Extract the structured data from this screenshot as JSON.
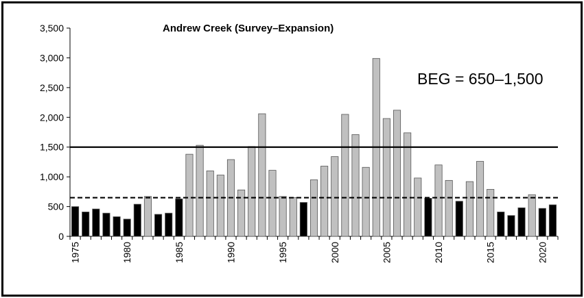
{
  "chart_data": {
    "type": "bar",
    "title": "Andrew Creek (Survey–Expansion)",
    "annotation": "BEG = 650–1,500",
    "xlabel": "",
    "ylabel": "",
    "ylim": [
      0,
      3500
    ],
    "yticks": [
      0,
      500,
      1000,
      1500,
      2000,
      2500,
      3000,
      3500
    ],
    "ytick_labels": [
      "0",
      "500",
      "1,000",
      "1,500",
      "2,000",
      "2,500",
      "3,000",
      "3,500"
    ],
    "xticks": [
      1975,
      1980,
      1985,
      1990,
      1995,
      2000,
      2005,
      2010,
      2015,
      2020
    ],
    "xtick_labels": [
      "1975",
      "1980",
      "1985",
      "1990",
      "1995",
      "2000",
      "2005",
      "2010",
      "2015",
      "2020"
    ],
    "grid": false,
    "legend": "none",
    "categories": [
      1975,
      1976,
      1977,
      1978,
      1979,
      1980,
      1981,
      1982,
      1983,
      1984,
      1985,
      1986,
      1987,
      1988,
      1989,
      1990,
      1991,
      1992,
      1993,
      1994,
      1995,
      1996,
      1997,
      1998,
      1999,
      2000,
      2001,
      2002,
      2003,
      2004,
      2005,
      2006,
      2007,
      2008,
      2009,
      2010,
      2011,
      2012,
      2013,
      2014,
      2015,
      2016,
      2017,
      2018,
      2019,
      2020,
      2021
    ],
    "values": [
      500,
      410,
      460,
      390,
      330,
      290,
      540,
      670,
      370,
      390,
      630,
      1380,
      1530,
      1100,
      1030,
      1290,
      780,
      1510,
      2060,
      1110,
      670,
      650,
      570,
      950,
      1180,
      1340,
      2050,
      1710,
      1160,
      2990,
      1980,
      2120,
      1740,
      980,
      640,
      1200,
      940,
      590,
      920,
      1260,
      790,
      410,
      350,
      480,
      700,
      470,
      530
    ],
    "bar_colors": [
      "#000000",
      "#000000",
      "#000000",
      "#000000",
      "#000000",
      "#000000",
      "#000000",
      "#c0c0c0",
      "#000000",
      "#000000",
      "#000000",
      "#c0c0c0",
      "#c0c0c0",
      "#c0c0c0",
      "#c0c0c0",
      "#c0c0c0",
      "#c0c0c0",
      "#c0c0c0",
      "#c0c0c0",
      "#c0c0c0",
      "#c0c0c0",
      "#c0c0c0",
      "#000000",
      "#c0c0c0",
      "#c0c0c0",
      "#c0c0c0",
      "#c0c0c0",
      "#c0c0c0",
      "#c0c0c0",
      "#c0c0c0",
      "#c0c0c0",
      "#c0c0c0",
      "#c0c0c0",
      "#c0c0c0",
      "#000000",
      "#c0c0c0",
      "#c0c0c0",
      "#000000",
      "#c0c0c0",
      "#c0c0c0",
      "#c0c0c0",
      "#000000",
      "#000000",
      "#000000",
      "#c0c0c0",
      "#000000",
      "#000000"
    ],
    "reference_lines": [
      {
        "value": 1500,
        "style": "solid"
      },
      {
        "value": 650,
        "style": "dashed"
      }
    ],
    "colors": {
      "above_goal_bar": "#c0c0c0",
      "below_goal_bar": "#000000",
      "bar_outline": "#555555",
      "line": "#000000"
    }
  }
}
